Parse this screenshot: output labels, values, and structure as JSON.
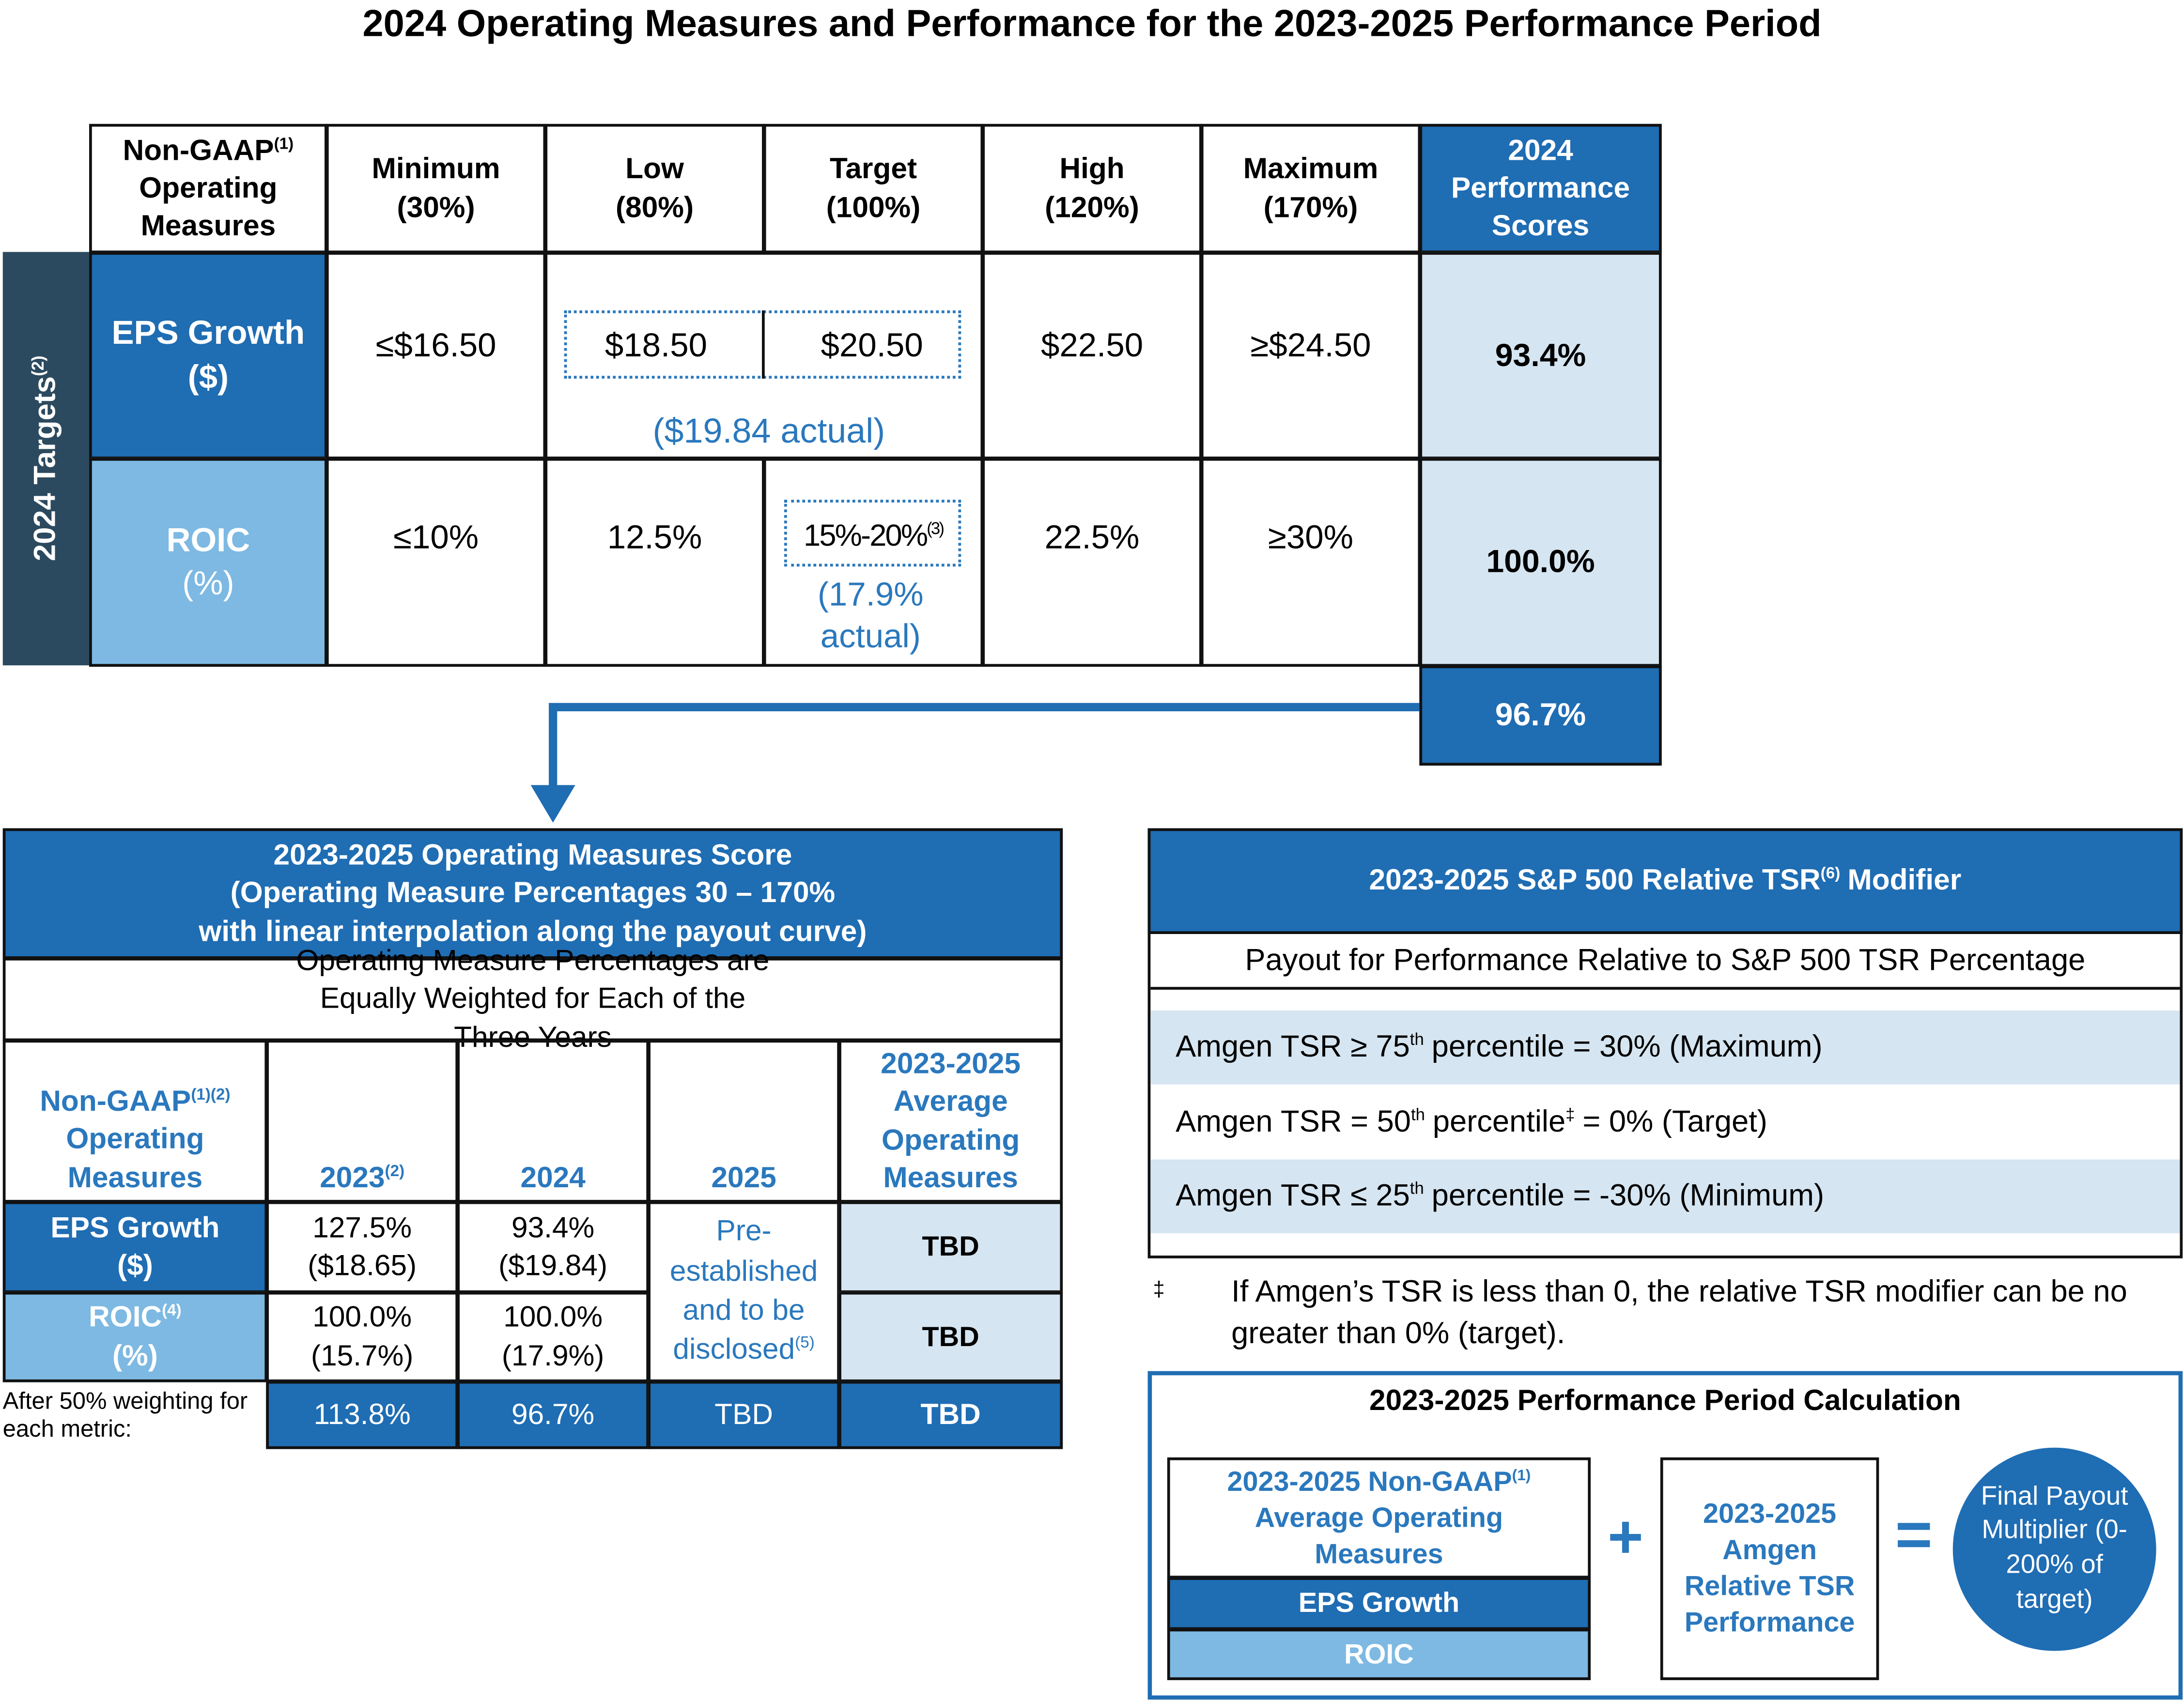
{
  "title": "2024 Operating Measures and Performance for the 2023-2025 Performance Period",
  "top_table": {
    "side_label": "2024 Targets",
    "side_label_sup": "(2)",
    "measure_header": {
      "main": "Non-GAAP",
      "sup": "(1)",
      "rest": "Operating Measures"
    },
    "levels": [
      [
        "Minimum",
        "(30%)"
      ],
      [
        "Low",
        "(80%)"
      ],
      [
        "Target",
        "(100%)"
      ],
      [
        "High",
        "(120%)"
      ],
      [
        "Maximum",
        "(170%)"
      ]
    ],
    "score_header": "2024 Performance Scores",
    "rows": [
      {
        "measure": "EPS Growth",
        "unit": "($)",
        "values": [
          "≤$16.50",
          "$18.50",
          "$20.50",
          "$22.50",
          "≥$24.50"
        ],
        "actual": "($19.84 actual)",
        "score": "93.4%"
      },
      {
        "measure": "ROIC",
        "unit": "(%)",
        "values": [
          "≤10%",
          "12.5%",
          "15%-20%",
          "22.5%",
          "≥30%"
        ],
        "target_sup": "(3)",
        "actual": "(17.9% actual)",
        "score": "100.0%"
      }
    ],
    "total_score": "96.7%"
  },
  "score_table": {
    "title": [
      "2023-2025 Operating Measures Score",
      "(Operating Measure Percentages 30 – 170%",
      "with linear interpolation along the payout curve)"
    ],
    "subtitle": "Operating Measure Percentages are Equally Weighted for Each of the Three Years",
    "header": {
      "measure": "Non-GAAP",
      "measure_sup": "(1)(2)",
      "measure_rest": "Operating Measures",
      "years": [
        {
          "text": "2023",
          "sup": "(2)"
        },
        {
          "text": "2024"
        },
        {
          "text": "2025"
        }
      ],
      "average": "2023-2025 Average Operating Measures"
    },
    "rows": [
      {
        "measure": "EPS Growth ($)",
        "cells": [
          [
            "127.5%",
            "($18.65)"
          ],
          [
            "93.4%",
            "($19.84)"
          ]
        ],
        "average": "TBD"
      },
      {
        "measure": "ROIC",
        "measure_sup": "(4)",
        "unit": "(%)",
        "cells": [
          [
            "100.0%",
            "(15.7%)"
          ],
          [
            "100.0%",
            "(17.9%)"
          ]
        ],
        "average": "TBD"
      }
    ],
    "pending_2025": "Pre-established and to be disclosed",
    "pending_sup": "(5)",
    "footer": {
      "label": "After 50% weighting for each metric:",
      "values": [
        "113.8%",
        "96.7%",
        "TBD",
        "TBD"
      ]
    }
  },
  "tsr": {
    "title": "2023-2025 S&P 500 Relative TSR",
    "title_sup": "(6)",
    "title_rest": "Modifier",
    "subtitle": "Payout for Performance Relative to S&P 500 TSR Percentage",
    "rows": [
      {
        "pre": "Amgen TSR ≥ 75",
        "sup": "th",
        "post": "percentile = 30% (Maximum)"
      },
      {
        "pre": "Amgen TSR = 50",
        "sup": "th",
        "post": "percentile",
        "sup2": "‡",
        "post2": "= 0% (Target)"
      },
      {
        "pre": "Amgen TSR ≤ 25",
        "sup": "th",
        "post": "percentile = -30% (Minimum)"
      }
    ]
  },
  "footnote": {
    "mark": "‡",
    "text": "If Amgen’s TSR is less than 0, the relative TSR modifier can be no greater than 0% (target)."
  },
  "calc": {
    "title": "2023-2025 Performance Period Calculation",
    "box1": {
      "main": "2023-2025 Non-GAAP",
      "sup": "(1)",
      "rest": "Average Operating Measures",
      "eps": "EPS Growth",
      "roic": "ROIC"
    },
    "plus": "+",
    "box2": "2023-2025 Amgen Relative TSR Performance",
    "equals": "=",
    "result": "Final Payout Multiplier (0-200% of target)"
  }
}
